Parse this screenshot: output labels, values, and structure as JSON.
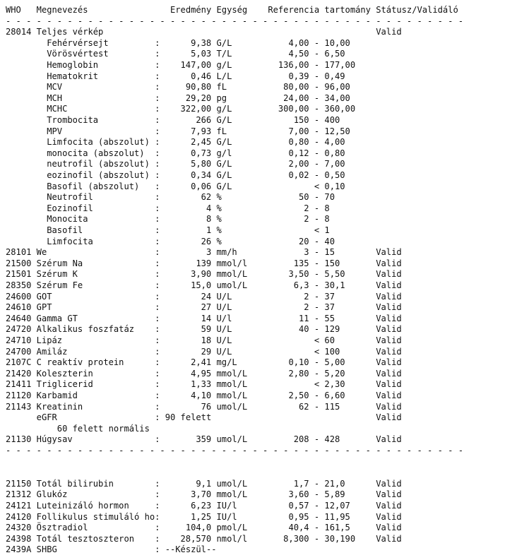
{
  "header": {
    "who": "WHO",
    "name": "Megnevezés",
    "result": "Eredmény",
    "unit": "Egység",
    "reference": "Referencia tartomány",
    "status": "Státusz/Validáló"
  },
  "separator": "- - - - - - - - - - - - - - - - - - - - - - - - - - - - - - - - - - - - - - - - - - - - -",
  "section1": [
    {
      "who": "28014",
      "name": "Teljes vérkép",
      "status": "Valid",
      "items": [
        {
          "name": "Fehérvérsejt",
          "result": "9,38",
          "unit": "G/L",
          "ref_low": "4,00",
          "ref_op": "-",
          "ref_high": "10,00"
        },
        {
          "name": "Vörösvértest",
          "result": "5,03",
          "unit": "T/L",
          "ref_low": "4,50",
          "ref_op": "-",
          "ref_high": "6,50"
        },
        {
          "name": "Hemoglobin",
          "result": "147,00",
          "unit": "g/L",
          "ref_low": "136,00",
          "ref_op": "-",
          "ref_high": "177,00"
        },
        {
          "name": "Hematokrit",
          "result": "0,46",
          "unit": "L/L",
          "ref_low": "0,39",
          "ref_op": "-",
          "ref_high": "0,49"
        },
        {
          "name": "MCV",
          "result": "90,80",
          "unit": "fL",
          "ref_low": "80,00",
          "ref_op": "-",
          "ref_high": "96,00"
        },
        {
          "name": "MCH",
          "result": "29,20",
          "unit": "pg",
          "ref_low": "24,00",
          "ref_op": "-",
          "ref_high": "34,00"
        },
        {
          "name": "MCHC",
          "result": "322,00",
          "unit": "g/L",
          "ref_low": "300,00",
          "ref_op": "-",
          "ref_high": "360,00"
        },
        {
          "name": "Trombocita",
          "result": "266",
          "unit": "G/L",
          "ref_low": "150",
          "ref_op": "-",
          "ref_high": "400"
        },
        {
          "name": "MPV",
          "result": "7,93",
          "unit": "fL",
          "ref_low": "7,00",
          "ref_op": "-",
          "ref_high": "12,50"
        },
        {
          "name": "Limfocita (abszolut)",
          "result": "2,45",
          "unit": "G/L",
          "ref_low": "0,80",
          "ref_op": "-",
          "ref_high": "4,00"
        },
        {
          "name": "monocita (abszolut)",
          "result": "0,73",
          "unit": "g/l",
          "ref_low": "0,12",
          "ref_op": "-",
          "ref_high": "0,80"
        },
        {
          "name": "neutrofil (abszolut)",
          "result": "5,80",
          "unit": "G/L",
          "ref_low": "2,00",
          "ref_op": "-",
          "ref_high": "7,00"
        },
        {
          "name": "eozinofil (abszolut)",
          "result": "0,34",
          "unit": "G/L",
          "ref_low": "0,02",
          "ref_op": "-",
          "ref_high": "0,50"
        },
        {
          "name": "Basofil (abszolut)",
          "result": "0,06",
          "unit": "G/L",
          "ref_low": "",
          "ref_op": "<",
          "ref_high": "0,10"
        },
        {
          "name": "Neutrofil",
          "result": "62",
          "unit": "%",
          "ref_low": "50",
          "ref_op": "-",
          "ref_high": "70"
        },
        {
          "name": "Eozinofil",
          "result": "4",
          "unit": "%",
          "ref_low": "2",
          "ref_op": "-",
          "ref_high": "8"
        },
        {
          "name": "Monocita",
          "result": "8",
          "unit": "%",
          "ref_low": "2",
          "ref_op": "-",
          "ref_high": "8"
        },
        {
          "name": "Basofil",
          "result": "1",
          "unit": "%",
          "ref_low": "",
          "ref_op": "<",
          "ref_high": "1"
        },
        {
          "name": "Limfocita",
          "result": "26",
          "unit": "%",
          "ref_low": "20",
          "ref_op": "-",
          "ref_high": "40"
        }
      ]
    },
    {
      "who": "28101",
      "name": "We",
      "result": "3",
      "unit": "mm/h",
      "ref_low": "3",
      "ref_op": "-",
      "ref_high": "15",
      "status": "Valid"
    },
    {
      "who": "21500",
      "name": "Szérum Na",
      "result": "139",
      "unit": "mmol/l",
      "ref_low": "135",
      "ref_op": "-",
      "ref_high": "150",
      "status": "Valid"
    },
    {
      "who": "21501",
      "name": "Szérum K",
      "result": "3,90",
      "unit": "mmol/L",
      "ref_low": "3,50",
      "ref_op": "-",
      "ref_high": "5,50",
      "status": "Valid"
    },
    {
      "who": "28350",
      "name": "Szérum Fe",
      "result": "15,0",
      "unit": "umol/L",
      "ref_low": "6,3",
      "ref_op": "-",
      "ref_high": "30,1",
      "status": "Valid"
    },
    {
      "who": "24600",
      "name": "GOT",
      "result": "24",
      "unit": "U/L",
      "ref_low": "2",
      "ref_op": "-",
      "ref_high": "37",
      "status": "Valid"
    },
    {
      "who": "24610",
      "name": "GPT",
      "result": "27",
      "unit": "U/L",
      "ref_low": "2",
      "ref_op": "-",
      "ref_high": "37",
      "status": "Valid"
    },
    {
      "who": "24640",
      "name": "Gamma GT",
      "result": "14",
      "unit": "U/l",
      "ref_low": "11",
      "ref_op": "-",
      "ref_high": "55",
      "status": "Valid"
    },
    {
      "who": "24720",
      "name": "Alkalikus foszfatáz",
      "result": "59",
      "unit": "U/L",
      "ref_low": "40",
      "ref_op": "-",
      "ref_high": "129",
      "status": "Valid"
    },
    {
      "who": "24710",
      "name": "Lipáz",
      "result": "18",
      "unit": "U/L",
      "ref_low": "",
      "ref_op": "<",
      "ref_high": "60",
      "status": "Valid"
    },
    {
      "who": "24700",
      "name": "Amiláz",
      "result": "29",
      "unit": "U/L",
      "ref_low": "",
      "ref_op": "<",
      "ref_high": "100",
      "status": "Valid"
    },
    {
      "who": "2107C",
      "name": "C reaktív protein",
      "result": "2,41",
      "unit": "mg/L",
      "ref_low": "0,10",
      "ref_op": "-",
      "ref_high": "5,00",
      "status": "Valid"
    },
    {
      "who": "21420",
      "name": "Koleszterin",
      "result": "4,95",
      "unit": "mmol/L",
      "ref_low": "2,80",
      "ref_op": "-",
      "ref_high": "5,20",
      "status": "Valid"
    },
    {
      "who": "21411",
      "name": "Triglicerid",
      "result": "1,33",
      "unit": "mmol/L",
      "ref_low": "",
      "ref_op": "<",
      "ref_high": "2,30",
      "status": "Valid"
    },
    {
      "who": "21120",
      "name": "Karbamid",
      "result": "4,10",
      "unit": "mmol/L",
      "ref_low": "2,50",
      "ref_op": "-",
      "ref_high": "6,60",
      "status": "Valid"
    },
    {
      "who": "21143",
      "name": "Kreatinin",
      "result": "76",
      "unit": "umol/L",
      "ref_low": "62",
      "ref_op": "-",
      "ref_high": "115",
      "status": "Valid"
    },
    {
      "who": "",
      "name": "eGFR",
      "text_result": "90 felett",
      "status": "Valid",
      "note": "60 felett normális"
    },
    {
      "who": "21130",
      "name": "Húgysav",
      "result": "359",
      "unit": "umol/L",
      "ref_low": "208",
      "ref_op": "-",
      "ref_high": "428",
      "status": "Valid"
    }
  ],
  "section2": [
    {
      "who": "21150",
      "name": "Totál bilirubin",
      "result": "9,1",
      "unit": "umol/L",
      "ref_low": "1,7",
      "ref_op": "-",
      "ref_high": "21,0",
      "status": "Valid"
    },
    {
      "who": "21312",
      "name": "Glukóz",
      "result": "3,70",
      "unit": "mmol/L",
      "ref_low": "3,60",
      "ref_op": "-",
      "ref_high": "5,89",
      "status": "Valid"
    },
    {
      "who": "24121",
      "name": "Luteinizáló hormon",
      "result": "6,23",
      "unit": "IU/l",
      "ref_low": "0,57",
      "ref_op": "-",
      "ref_high": "12,07",
      "status": "Valid"
    },
    {
      "who": "24120",
      "name": "Follikulus stimuláló ho",
      "result": "1,25",
      "unit": "IU/l",
      "ref_low": "0,95",
      "ref_op": "-",
      "ref_high": "11,95",
      "status": "Valid"
    },
    {
      "who": "24320",
      "name": "Ösztradiol",
      "result": "104,0",
      "unit": "pmol/L",
      "ref_low": "40,4",
      "ref_op": "-",
      "ref_high": "161,5",
      "status": "Valid"
    },
    {
      "who": "24398",
      "name": "Totál tesztoszteron",
      "result": "28,570",
      "unit": "nmol/l",
      "ref_low": "8,300",
      "ref_op": "-",
      "ref_high": "30,190",
      "status": "Valid"
    },
    {
      "who": "2439A",
      "name": "SHBG",
      "text_result": "--Készül--"
    }
  ]
}
